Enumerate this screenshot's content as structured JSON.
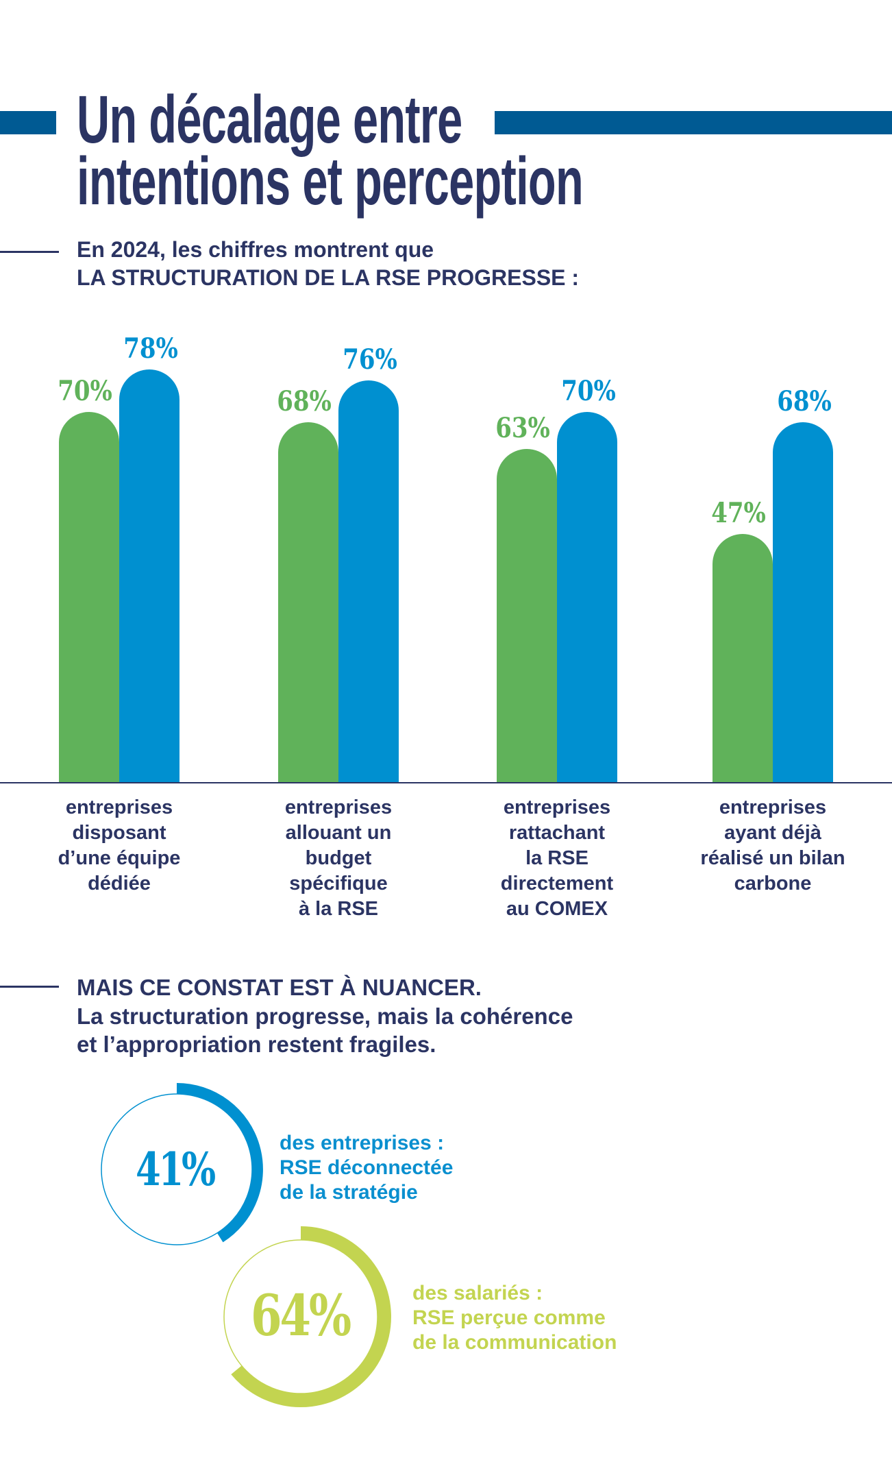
{
  "header": {
    "title_line1": "Un décalage entre",
    "title_line2": "intentions et perception",
    "intro_line1": "En 2024, les chiffres montrent que",
    "intro_line2": "LA STRUCTURATION DE LA RSE PROGRESSE :"
  },
  "colors": {
    "navy": "#2b3463",
    "deco_bar": "#005a93",
    "green": "#60b25a",
    "blue": "#0090d0",
    "lime": "#c3d450"
  },
  "chart_data": {
    "type": "bar",
    "categories": [
      [
        "entreprises",
        "disposant",
        "d’une équipe",
        "dédiée"
      ],
      [
        "entreprises",
        "allouant un",
        "budget",
        "spécifique",
        "à la RSE"
      ],
      [
        "entreprises",
        "rattachant",
        "la RSE",
        "directement",
        "au COMEX"
      ],
      [
        "entreprises",
        "ayant déjà",
        "réalisé un bilan",
        "carbone"
      ]
    ],
    "series": [
      {
        "color": "#60b25a",
        "values": [
          70,
          68,
          63,
          47
        ],
        "labels": [
          "70%",
          "68%",
          "63%",
          "47%"
        ]
      },
      {
        "color": "#0090d0",
        "values": [
          78,
          76,
          70,
          68
        ],
        "labels": [
          "78%",
          "76%",
          "70%",
          "68%"
        ]
      }
    ],
    "ylim": [
      0,
      100
    ],
    "grid": false,
    "legend": "none",
    "unit": "%"
  },
  "nuance": {
    "line1": "MAIS CE CONSTAT EST À NUANCER.",
    "line2": "La structuration progresse, mais la cohérence",
    "line3": "et l’appropriation restent fragiles."
  },
  "stats": [
    {
      "value": 41,
      "label": "41%",
      "color": "#0090d0",
      "text": [
        "des entreprises :",
        "RSE déconnectée",
        "de la stratégie"
      ]
    },
    {
      "value": 64,
      "label": "64%",
      "color": "#c3d450",
      "text": [
        "des salariés :",
        "RSE perçue comme",
        "de la communication"
      ]
    }
  ]
}
